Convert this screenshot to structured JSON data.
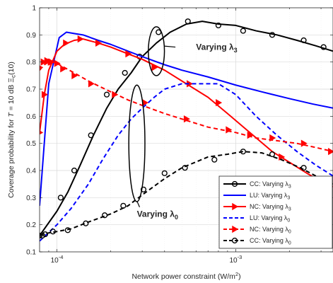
{
  "chart_data": {
    "type": "line",
    "xlabel": "Network power constraint (W/m²)",
    "ylabel": "Coverage probability for T = 10 dB Ξc(10)",
    "xscale": "log",
    "xlim": [
      8e-05,
      0.0035
    ],
    "ylim": [
      0.1,
      1.0
    ],
    "grid": true,
    "legend_position": "lower-right",
    "xtick_labels": [
      {
        "value": 0.0001,
        "base": "10",
        "exp": "-4"
      },
      {
        "value": 0.001,
        "base": "10",
        "exp": "-3"
      }
    ],
    "ytick_labels": [
      "0.1",
      "0.2",
      "0.3",
      "0.4",
      "0.5",
      "0.6",
      "0.7",
      "0.8",
      "0.9",
      "1"
    ],
    "series": [
      {
        "name": "CC: Varying λ3",
        "color": "#000000",
        "dash": "solid",
        "marker": "circle",
        "x": [
          8e-05,
          0.0001,
          0.000115,
          0.000135,
          0.00016,
          0.00019,
          0.00022,
          0.00026,
          0.0003,
          0.00036,
          0.00043,
          0.00053,
          0.00065,
          0.0008,
          0.001,
          0.0013,
          0.0017,
          0.0022,
          0.0028,
          0.0035
        ],
        "y": [
          0.16,
          0.25,
          0.32,
          0.42,
          0.53,
          0.63,
          0.7,
          0.76,
          0.82,
          0.87,
          0.91,
          0.94,
          0.95,
          0.94,
          0.935,
          0.915,
          0.9,
          0.88,
          0.86,
          0.84
        ],
        "marker_x": [
          8e-05,
          0.000105,
          0.000125,
          0.000155,
          0.00019,
          0.00024,
          0.00029,
          0.00037,
          0.00054,
          0.0008,
          0.0011,
          0.0016,
          0.0024,
          0.0031
        ],
        "marker_y": [
          0.16,
          0.3,
          0.4,
          0.53,
          0.68,
          0.76,
          0.82,
          0.91,
          0.95,
          0.935,
          0.915,
          0.9,
          0.88,
          0.855
        ]
      },
      {
        "name": "LU: Varying λ3",
        "color": "#0000ff",
        "dash": "solid",
        "marker": "none",
        "x": [
          8e-05,
          9e-05,
          0.000103,
          0.000113,
          0.000125,
          0.00014,
          0.00017,
          0.0002,
          0.00025,
          0.0003,
          0.0004,
          0.0005,
          0.0007,
          0.001,
          0.0014,
          0.002,
          0.0027,
          0.0035
        ],
        "y": [
          0.27,
          0.72,
          0.89,
          0.91,
          0.905,
          0.9,
          0.88,
          0.865,
          0.84,
          0.82,
          0.79,
          0.77,
          0.745,
          0.715,
          0.69,
          0.665,
          0.645,
          0.63
        ]
      },
      {
        "name": "NC: Varying λ3",
        "color": "#ff0000",
        "dash": "solid",
        "marker": "triangle-right",
        "x": [
          8e-05,
          8.5e-05,
          9e-05,
          0.0001,
          0.00011,
          0.000125,
          0.00014,
          0.00017,
          0.0002,
          0.00025,
          0.0003,
          0.0004,
          0.0005,
          0.0007,
          0.0009,
          0.0012,
          0.0016,
          0.002,
          0.0025,
          0.003,
          0.0035
        ],
        "y": [
          0.54,
          0.68,
          0.77,
          0.84,
          0.865,
          0.88,
          0.885,
          0.87,
          0.855,
          0.83,
          0.81,
          0.77,
          0.73,
          0.67,
          0.61,
          0.54,
          0.47,
          0.43,
          0.39,
          0.36,
          0.34
        ],
        "marker_x": [
          8e-05,
          8.5e-05,
          9.2e-05,
          0.000112,
          0.000135,
          0.00017,
          0.00025,
          0.00035,
          0.00055,
          0.0008,
          0.0012,
          0.0018,
          0.0027
        ],
        "marker_y": [
          0.54,
          0.68,
          0.8,
          0.87,
          0.885,
          0.87,
          0.83,
          0.78,
          0.72,
          0.65,
          0.53,
          0.45,
          0.37
        ]
      },
      {
        "name": "LU: Varying λ0",
        "color": "#0000ff",
        "dash": "dashed",
        "marker": "none",
        "x": [
          8e-05,
          0.0001,
          0.00012,
          0.00015,
          0.00018,
          0.00022,
          0.00026,
          0.0003,
          0.00035,
          0.0004,
          0.0005,
          0.0006,
          0.0008,
          0.001,
          0.0013,
          0.0017,
          0.0022,
          0.0028,
          0.0035
        ],
        "y": [
          0.14,
          0.2,
          0.26,
          0.35,
          0.44,
          0.53,
          0.59,
          0.63,
          0.67,
          0.7,
          0.72,
          0.72,
          0.72,
          0.68,
          0.6,
          0.53,
          0.47,
          0.42,
          0.38
        ]
      },
      {
        "name": "NC: Varying λ0",
        "color": "#ff0000",
        "dash": "dashed",
        "marker": "triangle-right",
        "x": [
          8e-05,
          8.5e-05,
          9e-05,
          9.5e-05,
          0.0001,
          0.00011,
          0.000125,
          0.00015,
          0.0002,
          0.00025,
          0.0003,
          0.0004,
          0.0005,
          0.0007,
          0.001,
          0.0013,
          0.0017,
          0.0022,
          0.0028,
          0.0035
        ],
        "y": [
          0.77,
          0.79,
          0.8,
          0.8,
          0.795,
          0.78,
          0.76,
          0.73,
          0.69,
          0.66,
          0.64,
          0.61,
          0.59,
          0.56,
          0.54,
          0.52,
          0.51,
          0.5,
          0.485,
          0.47
        ],
        "marker_x": [
          8e-05,
          8.4e-05,
          8.8e-05,
          9.3e-05,
          0.0001,
          0.000108,
          0.000125,
          0.000155,
          0.00021,
          0.00031,
          0.00053,
          0.00091,
          0.0016,
          0.0024,
          0.0034
        ],
        "marker_y": [
          0.78,
          0.8,
          0.805,
          0.8,
          0.795,
          0.775,
          0.75,
          0.72,
          0.68,
          0.65,
          0.59,
          0.55,
          0.52,
          0.5,
          0.47
        ]
      },
      {
        "name": "CC: Varying λ0",
        "color": "#000000",
        "dash": "dashed",
        "marker": "circle",
        "x": [
          8e-05,
          8.5e-05,
          9e-05,
          0.0001,
          0.00012,
          0.00015,
          0.0002,
          0.00025,
          0.0003,
          0.0004,
          0.0005,
          0.0007,
          0.0009,
          0.0011,
          0.0014,
          0.0018,
          0.0023,
          0.0028,
          0.0035
        ],
        "y": [
          0.16,
          0.165,
          0.17,
          0.175,
          0.185,
          0.21,
          0.24,
          0.27,
          0.31,
          0.37,
          0.41,
          0.45,
          0.46,
          0.47,
          0.465,
          0.44,
          0.41,
          0.38,
          0.35
        ],
        "marker_x": [
          8e-05,
          8.3e-05,
          8.6e-05,
          9.5e-05,
          0.000115,
          0.000145,
          0.000185,
          0.000235,
          0.000305,
          0.0004,
          0.00052,
          0.00076,
          0.0011,
          0.0016,
          0.0024
        ],
        "marker_y": [
          0.16,
          0.16,
          0.165,
          0.175,
          0.18,
          0.205,
          0.235,
          0.27,
          0.33,
          0.39,
          0.41,
          0.44,
          0.47,
          0.46,
          0.41
        ]
      }
    ],
    "annotations": [
      {
        "text": "Varying λ3",
        "base": "Varying λ",
        "sub": "3",
        "x": 0.0006,
        "y": 0.855,
        "ellipse": {
          "cx": 0.00036,
          "cy": 0.84,
          "rx_log": 0.045,
          "ry": 0.09
        },
        "connector_to": {
          "x": 0.00046,
          "y": 0.855
        }
      },
      {
        "text": "Varying λ0",
        "base": "Varying λ",
        "sub": "0",
        "x": 0.00028,
        "y": 0.24,
        "ellipse": {
          "cx": 0.00028,
          "cy": 0.5,
          "rx_log": 0.045,
          "ry": 0.215
        },
        "connector_to": {
          "x": 0.00029,
          "y": 0.265
        }
      }
    ]
  },
  "legend": [
    {
      "base": "CC: Varying λ",
      "sub": "3"
    },
    {
      "base": "LU: Varying λ",
      "sub": "3"
    },
    {
      "base": "NC: Varying λ",
      "sub": "3"
    },
    {
      "base": "LU: Varying λ",
      "sub": "0"
    },
    {
      "base": "NC: Varying λ",
      "sub": "0"
    },
    {
      "base": "CC: Varying λ",
      "sub": "0"
    }
  ],
  "ylabel_parts": {
    "a": "Coverage probability for ",
    "t": "T",
    "b": " = 10 dB Ξ",
    "sub": "c",
    "c": "(10)"
  },
  "xlabel_parts": {
    "a": "Network power constraint (W/m",
    "sup": "2",
    "b": ")"
  }
}
